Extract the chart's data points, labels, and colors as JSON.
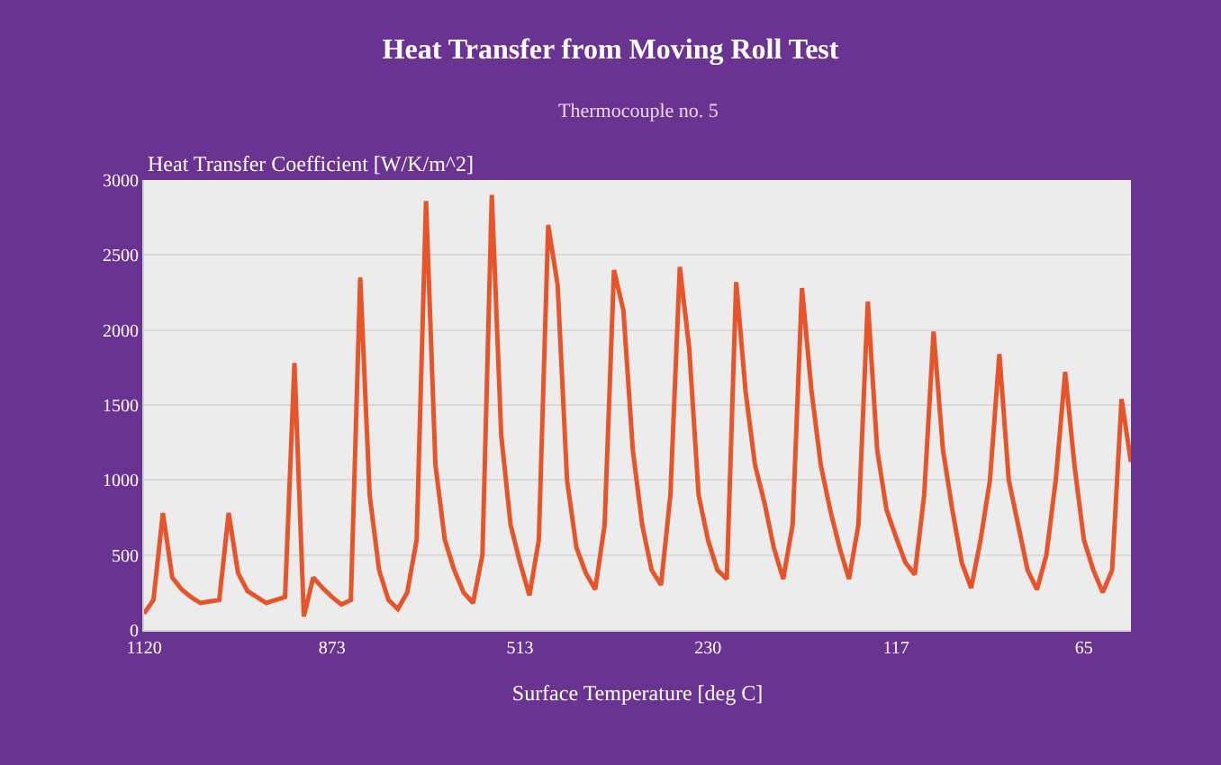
{
  "chart_data": {
    "type": "line",
    "title": "Heat Transfer from Moving Roll Test",
    "subtitle": "Thermocouple no. 5",
    "xlabel": "Surface Temperature [deg C]",
    "ylabel": "Heat Transfer Coefficient [W/K/m^2]",
    "categories": [
      "1120",
      null,
      null,
      null,
      null,
      null,
      null,
      null,
      null,
      null,
      null,
      null,
      null,
      null,
      null,
      null,
      null,
      null,
      null,
      null,
      "873",
      null,
      null,
      null,
      null,
      null,
      null,
      null,
      null,
      null,
      null,
      null,
      null,
      null,
      null,
      null,
      null,
      null,
      null,
      null,
      "513",
      null,
      null,
      null,
      null,
      null,
      null,
      null,
      null,
      null,
      null,
      null,
      null,
      null,
      null,
      null,
      null,
      null,
      null,
      null,
      "230",
      null,
      null,
      null,
      null,
      null,
      null,
      null,
      null,
      null,
      null,
      null,
      null,
      null,
      null,
      null,
      null,
      null,
      null,
      null,
      "117",
      null,
      null,
      null,
      null,
      null,
      null,
      null,
      null,
      null,
      null,
      null,
      null,
      null,
      null,
      null,
      null,
      null,
      null,
      null,
      "65",
      null,
      null,
      null,
      null,
      null
    ],
    "series": [
      {
        "color": "#e8542a",
        "values": [
          110,
          200,
          780,
          350,
          270,
          220,
          180,
          190,
          200,
          780,
          380,
          260,
          220,
          180,
          200,
          220,
          1780,
          90,
          350,
          280,
          220,
          170,
          200,
          2350,
          900,
          400,
          200,
          140,
          250,
          600,
          2860,
          1100,
          600,
          400,
          250,
          180,
          500,
          2900,
          1300,
          700,
          450,
          230,
          600,
          2700,
          2300,
          1000,
          550,
          380,
          270,
          700,
          2400,
          2130,
          1200,
          700,
          400,
          300,
          900,
          2420,
          1880,
          900,
          600,
          400,
          340,
          2320,
          1590,
          1100,
          850,
          550,
          340,
          700,
          2280,
          1600,
          1100,
          800,
          550,
          340,
          700,
          2190,
          1200,
          800,
          620,
          450,
          370,
          900,
          1990,
          1200,
          800,
          450,
          280,
          600,
          1000,
          1840,
          1000,
          700,
          400,
          270,
          500,
          1000,
          1720,
          1090,
          600,
          400,
          250,
          400,
          1540,
          1120
        ]
      }
    ],
    "ylim": [
      0,
      3000
    ],
    "yticks": [
      0,
      500,
      1000,
      1500,
      2000,
      2500,
      3000
    ],
    "grid": "y",
    "marker": "none",
    "line_style": "solid"
  }
}
